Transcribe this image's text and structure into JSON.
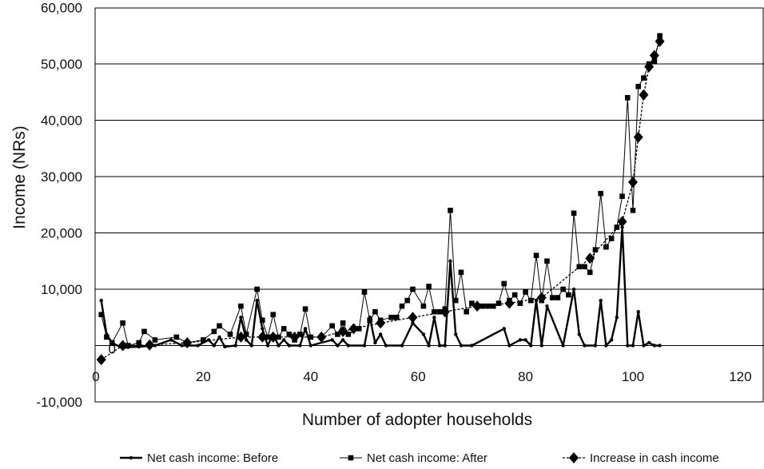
{
  "chart_data": {
    "type": "line",
    "title": "",
    "xlabel": "Number of adopter households",
    "ylabel": "Income (NRs)",
    "xlim": [
      0,
      125
    ],
    "ylim": [
      -10000,
      60000
    ],
    "x_ticks": [
      0,
      20,
      40,
      60,
      80,
      100,
      120
    ],
    "x_tick_labels": [
      "0",
      "20",
      "40",
      "60",
      "80",
      "100",
      "120"
    ],
    "y_ticks": [
      -10000,
      0,
      10000,
      20000,
      30000,
      40000,
      50000,
      60000
    ],
    "y_tick_labels": [
      "-10,000",
      "0",
      "10,000",
      "20,000",
      "30,000",
      "40,000",
      "50,000",
      "60,000"
    ],
    "grid": "horizontal",
    "legend_position": "bottom",
    "series": [
      {
        "name": "Net cash income: Before",
        "marker": "circle",
        "line_style": "solid-thick",
        "color": "#000000",
        "x": [
          1,
          2,
          3,
          4,
          5,
          6,
          7,
          8,
          9,
          10,
          11,
          12,
          13,
          14,
          15,
          16,
          17,
          18,
          19,
          20,
          21,
          22,
          23,
          24,
          25,
          26,
          27,
          28,
          29,
          30,
          31,
          32,
          33,
          34,
          35,
          36,
          37,
          38,
          39,
          40,
          41,
          42,
          43,
          44,
          45,
          46,
          47,
          48,
          49,
          50,
          51,
          52,
          53,
          54,
          55,
          56,
          57,
          58,
          59,
          60,
          61,
          62,
          63,
          64,
          65,
          66,
          67,
          68,
          69,
          70,
          71,
          72,
          73,
          74,
          75,
          76,
          77,
          78,
          79,
          80,
          81,
          82,
          83,
          84,
          85,
          86,
          87,
          88,
          89,
          90,
          91,
          92,
          93,
          94,
          95,
          96,
          97,
          98,
          99,
          100,
          101,
          102,
          103,
          104,
          105
        ],
        "y": [
          8000,
          2000,
          500,
          0,
          -500,
          -300,
          0,
          -200,
          0,
          -300,
          0,
          -200,
          500,
          1000,
          0,
          300,
          0,
          0,
          500,
          0,
          1000,
          0,
          1500,
          -200,
          1000,
          0,
          5000,
          1000,
          0,
          8000,
          3000,
          0,
          2000,
          0,
          1000,
          0,
          0,
          3000,
          0,
          -300,
          0,
          0,
          0,
          1000,
          0,
          1000,
          0,
          0,
          0,
          0,
          5000,
          500,
          2000,
          0,
          0,
          0,
          0,
          0,
          4000,
          2000,
          0,
          1500,
          3000,
          0,
          0,
          15000,
          2000,
          0,
          0,
          0,
          0,
          0,
          0,
          0,
          0,
          3000,
          0,
          0,
          1000,
          0,
          0,
          8000,
          0,
          7000,
          0,
          0,
          0,
          0,
          0,
          10000,
          2000,
          0,
          0,
          0,
          8000,
          0,
          1000,
          5000,
          21000,
          0,
          0,
          6000,
          0,
          500,
          0
        ],
        "plot_x": [
          1,
          2,
          3,
          5,
          6,
          8,
          11,
          14,
          16,
          19,
          21,
          22,
          23,
          24,
          26,
          27,
          28,
          29,
          30,
          31,
          32,
          33,
          34,
          35,
          36,
          38,
          39,
          40,
          44,
          45,
          46,
          47,
          50,
          51,
          52,
          53,
          54,
          57,
          59,
          61,
          62,
          63,
          64,
          65,
          66,
          67,
          68,
          70,
          76,
          77,
          79,
          80,
          81,
          82,
          83,
          84,
          87,
          89,
          90,
          91,
          93,
          94,
          95,
          96,
          97,
          98,
          99,
          100,
          101,
          102,
          103,
          104,
          105
        ],
        "plot_y": [
          8000,
          2000,
          500,
          -500,
          -300,
          -200,
          0,
          1000,
          0,
          0,
          1000,
          0,
          1500,
          -200,
          0,
          5000,
          1000,
          0,
          8000,
          3000,
          0,
          2000,
          0,
          1000,
          0,
          0,
          3000,
          0,
          1000,
          0,
          1000,
          0,
          0,
          5000,
          500,
          2000,
          0,
          0,
          4000,
          2000,
          0,
          5000,
          0,
          0,
          15000,
          2000,
          0,
          0,
          3000,
          0,
          1000,
          1000,
          0,
          8000,
          0,
          7000,
          0,
          10000,
          2000,
          0,
          0,
          8000,
          0,
          1000,
          5000,
          21000,
          0,
          0,
          6000,
          0,
          500,
          0,
          0
        ]
      },
      {
        "name": "Net cash income: After",
        "marker": "square",
        "line_style": "solid-thin",
        "color": "#000000",
        "x": [
          1,
          2,
          3,
          5,
          6,
          8,
          9,
          11,
          15,
          17,
          20,
          22,
          23,
          25,
          27,
          28,
          30,
          31,
          32,
          33,
          34,
          35,
          36,
          37,
          38,
          39,
          40,
          42,
          44,
          45,
          46,
          47,
          49,
          50,
          51,
          52,
          53,
          55,
          56,
          57,
          58,
          59,
          60,
          61,
          62,
          63,
          64,
          65,
          66,
          67,
          68,
          69,
          70,
          71,
          72,
          73,
          74,
          75,
          76,
          77,
          78,
          79,
          80,
          81,
          82,
          83,
          84,
          85,
          86,
          87,
          88,
          89,
          90,
          91,
          92,
          93,
          94,
          95,
          96,
          97,
          98,
          99,
          100,
          101,
          102,
          103,
          104,
          105
        ],
        "y": [
          5500,
          1500,
          500,
          4000,
          0,
          500,
          2500,
          1000,
          1500,
          500,
          1000,
          2500,
          3500,
          2000,
          7000,
          2000,
          10000,
          4500,
          1500,
          5500,
          1500,
          3000,
          2000,
          1000,
          2000,
          6500,
          1500,
          1500,
          3500,
          2000,
          4000,
          2000,
          3000,
          9500,
          4500,
          6000,
          4500,
          5000,
          5000,
          7000,
          8000,
          10000,
          7500,
          7000,
          10500,
          6000,
          6000,
          6500,
          24000,
          8000,
          13000,
          6000,
          7500,
          7000,
          7000,
          7000,
          7000,
          7500,
          11000,
          8000,
          9000,
          7500,
          9500,
          8000,
          16000,
          8000,
          15000,
          8500,
          8500,
          10000,
          9000,
          23500,
          14000,
          14000,
          13000,
          17000,
          27000,
          17500,
          19000,
          21000,
          26500,
          44000,
          24000,
          46000,
          47500,
          50000,
          50500,
          55000
        ],
        "plot_x": [
          1,
          2,
          3,
          5,
          6,
          8,
          9,
          11,
          15,
          17,
          20,
          22,
          23,
          25,
          27,
          28,
          30,
          31,
          32,
          33,
          34,
          35,
          36,
          37,
          38,
          39,
          40,
          42,
          44,
          45,
          46,
          47,
          49,
          50,
          51,
          52,
          53,
          55,
          56,
          57,
          58,
          59,
          61,
          62,
          63,
          64,
          65,
          66,
          67,
          68,
          69,
          70,
          71,
          72,
          73,
          74,
          75,
          76,
          77,
          78,
          79,
          80,
          81,
          82,
          83,
          84,
          85,
          86,
          87,
          88,
          89,
          90,
          91,
          92,
          93,
          94,
          95,
          96,
          97,
          98,
          99,
          100,
          101,
          102,
          103,
          104,
          105
        ],
        "plot_y": [
          5500,
          1500,
          500,
          4000,
          0,
          500,
          2500,
          1000,
          1500,
          500,
          1000,
          2500,
          3500,
          2000,
          7000,
          2000,
          10000,
          4500,
          1500,
          5500,
          1500,
          3000,
          2000,
          1000,
          2000,
          6500,
          1500,
          1500,
          3500,
          2000,
          4000,
          2000,
          3000,
          9500,
          4500,
          6000,
          4500,
          5000,
          5000,
          7000,
          8000,
          10000,
          7000,
          10500,
          6000,
          6000,
          6500,
          24000,
          8000,
          13000,
          6000,
          7500,
          7000,
          7000,
          7000,
          7000,
          7500,
          11000,
          8000,
          9000,
          7500,
          9500,
          8000,
          16000,
          8000,
          15000,
          8500,
          8500,
          10000,
          9000,
          23500,
          14000,
          14000,
          13000,
          17000,
          27000,
          17500,
          19000,
          21000,
          26500,
          44000,
          24000,
          46000,
          47500,
          50000,
          50500,
          55000
        ]
      },
      {
        "name": "Increase in cash income",
        "marker": "diamond",
        "line_style": "dashed",
        "color": "#000000",
        "x": [
          1,
          5,
          10,
          17,
          27,
          31,
          33,
          37,
          42,
          46,
          48,
          53,
          59,
          65,
          71,
          77,
          83,
          92,
          98,
          100,
          101,
          102,
          103,
          104,
          105
        ],
        "y": [
          -2500,
          0,
          100,
          500,
          1500,
          1500,
          1500,
          1500,
          1500,
          2500,
          3000,
          4000,
          5000,
          6000,
          7000,
          7500,
          8500,
          15500,
          22000,
          29000,
          37000,
          44500,
          49500,
          51500,
          54000
        ]
      }
    ]
  }
}
